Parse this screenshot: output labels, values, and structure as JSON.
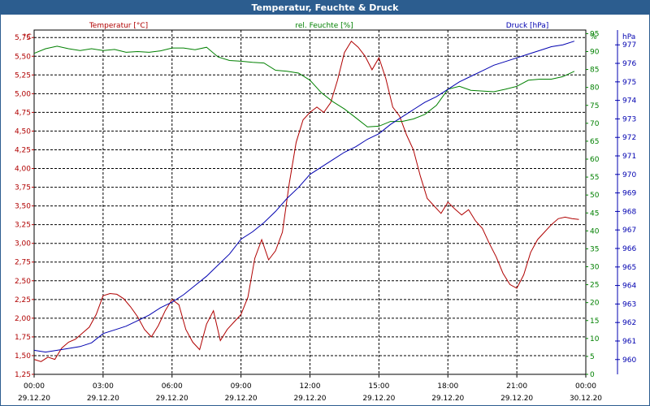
{
  "window": {
    "title": "Temperatur, Feuchte & Druck"
  },
  "colors": {
    "titlebar": "#2c5d8f",
    "temperature": "#b00000",
    "humidity": "#008000",
    "pressure": "#0000b0",
    "grid": "#000000"
  },
  "chart_data": {
    "type": "line",
    "grid": true,
    "x_ticks": [
      {
        "time": "00:00",
        "date": "29.12.20"
      },
      {
        "time": "03:00",
        "date": "29.12.20"
      },
      {
        "time": "06:00",
        "date": "29.12.20"
      },
      {
        "time": "09:00",
        "date": "29.12.20"
      },
      {
        "time": "12:00",
        "date": "29.12.20"
      },
      {
        "time": "15:00",
        "date": "29.12.20"
      },
      {
        "time": "18:00",
        "date": "29.12.20"
      },
      {
        "time": "21:00",
        "date": "29.12.20"
      },
      {
        "time": "00:00",
        "date": "30.12.20"
      }
    ],
    "x_range_hours": [
      0,
      24
    ],
    "axes": {
      "temperature": {
        "label": "Temperatur [°C]",
        "unit": "°C",
        "range": [
          1.25,
          5.85
        ],
        "ticks": [
          "1,25",
          "1,50",
          "1,75",
          "2,00",
          "2,25",
          "2,50",
          "2,75",
          "3,00",
          "3,25",
          "3,50",
          "3,75",
          "4,00",
          "4,25",
          "4,50",
          "4,75",
          "5,00",
          "5,25",
          "5,50",
          "5,75"
        ]
      },
      "humidity": {
        "label": "rel. Feuchte [%]",
        "unit": "%",
        "range": [
          0,
          96
        ],
        "ticks": [
          "0",
          "5",
          "10",
          "15",
          "20",
          "25",
          "30",
          "35",
          "40",
          "45",
          "50",
          "55",
          "60",
          "65",
          "70",
          "75",
          "80",
          "85",
          "90",
          "95"
        ]
      },
      "pressure": {
        "label": "Druck [hPa]",
        "unit": "hPa",
        "range": [
          959.2,
          977.8
        ],
        "ticks": [
          "960",
          "961",
          "962",
          "963",
          "964",
          "965",
          "966",
          "967",
          "968",
          "969",
          "970",
          "971",
          "972",
          "973",
          "974",
          "975",
          "976",
          "977"
        ]
      }
    },
    "series": [
      {
        "name": "Temperatur [°C]",
        "axis": "temperature",
        "color": "#b00000",
        "x": [
          0,
          0.3,
          0.6,
          0.9,
          1.2,
          1.5,
          1.8,
          2.1,
          2.4,
          2.7,
          3.0,
          3.3,
          3.6,
          3.9,
          4.2,
          4.5,
          4.8,
          5.1,
          5.4,
          5.7,
          6.0,
          6.3,
          6.6,
          6.9,
          7.2,
          7.5,
          7.8,
          8.1,
          8.4,
          8.7,
          9.0,
          9.3,
          9.6,
          9.9,
          10.2,
          10.5,
          10.8,
          11.1,
          11.4,
          11.7,
          12.0,
          12.3,
          12.6,
          12.9,
          13.2,
          13.5,
          13.8,
          14.1,
          14.4,
          14.7,
          15.0,
          15.3,
          15.6,
          15.9,
          16.2,
          16.5,
          16.8,
          17.1,
          17.4,
          17.7,
          18.0,
          18.3,
          18.6,
          18.9,
          19.2,
          19.5,
          19.8,
          20.1,
          20.4,
          20.7,
          21.0,
          21.3,
          21.6,
          21.9,
          22.2,
          22.5,
          22.8,
          23.1,
          23.4,
          23.7
        ],
        "values": [
          1.45,
          1.42,
          1.48,
          1.45,
          1.6,
          1.68,
          1.72,
          1.8,
          1.88,
          2.05,
          2.3,
          2.33,
          2.32,
          2.26,
          2.15,
          2.02,
          1.85,
          1.75,
          1.9,
          2.1,
          2.25,
          2.18,
          1.85,
          1.68,
          1.58,
          1.92,
          2.1,
          1.7,
          1.85,
          1.95,
          2.05,
          2.28,
          2.8,
          3.05,
          2.78,
          2.9,
          3.15,
          3.8,
          4.35,
          4.65,
          4.75,
          4.82,
          4.75,
          4.88,
          5.18,
          5.55,
          5.7,
          5.62,
          5.5,
          5.32,
          5.48,
          5.2,
          4.82,
          4.7,
          4.45,
          4.25,
          3.9,
          3.6,
          3.5,
          3.4,
          3.55,
          3.46,
          3.38,
          3.45,
          3.3,
          3.2,
          3.0,
          2.82,
          2.6,
          2.45,
          2.4,
          2.58,
          2.88,
          3.05,
          3.15,
          3.25,
          3.33,
          3.35,
          3.33,
          3.32
        ]
      },
      {
        "name": "rel. Feuchte [%]",
        "axis": "humidity",
        "color": "#008000",
        "x": [
          0,
          0.5,
          1,
          1.5,
          2,
          2.5,
          3,
          3.5,
          4,
          4.5,
          5,
          5.5,
          6,
          6.5,
          7,
          7.5,
          8,
          8.5,
          9,
          9.5,
          10,
          10.5,
          11,
          11.5,
          12,
          12.5,
          13,
          13.5,
          14,
          14.5,
          15,
          15.5,
          16,
          16.5,
          17,
          17.5,
          18,
          18.5,
          19,
          19.5,
          20,
          20.5,
          21,
          21.5,
          22,
          22.5,
          23,
          23.5
        ],
        "values": [
          89.5,
          90.8,
          91.5,
          90.8,
          90.3,
          90.8,
          90.3,
          90.6,
          89.8,
          90.0,
          89.8,
          90.2,
          91.0,
          91.0,
          90.5,
          91.2,
          88.5,
          87.5,
          87.3,
          87.0,
          86.8,
          84.8,
          84.5,
          84.0,
          82.0,
          78.5,
          76.0,
          74.0,
          71.5,
          69.0,
          69.2,
          70.5,
          70.5,
          71.2,
          72.5,
          75.0,
          79.5,
          80.3,
          79.2,
          79.0,
          78.8,
          79.5,
          80.3,
          82.0,
          82.3,
          82.3,
          83.0,
          84.5
        ]
      },
      {
        "name": "Druck [hPa]",
        "axis": "pressure",
        "color": "#0000b0",
        "x": [
          0,
          0.5,
          1,
          1.5,
          2,
          2.5,
          3,
          3.5,
          4,
          4.5,
          5,
          5.5,
          6,
          6.5,
          7,
          7.5,
          8,
          8.5,
          9,
          9.5,
          10,
          10.5,
          11,
          11.5,
          12,
          12.5,
          13,
          13.5,
          14,
          14.5,
          15,
          15.5,
          16,
          16.5,
          17,
          17.5,
          18,
          18.5,
          19,
          19.5,
          20,
          20.5,
          21,
          21.5,
          22,
          22.5,
          23,
          23.5
        ],
        "values": [
          960.5,
          960.4,
          960.5,
          960.6,
          960.7,
          960.9,
          961.4,
          961.6,
          961.8,
          962.1,
          962.4,
          962.8,
          963.1,
          963.5,
          964.0,
          964.5,
          965.1,
          965.7,
          966.5,
          966.9,
          967.4,
          968.0,
          968.7,
          969.3,
          970.0,
          970.4,
          970.8,
          971.2,
          971.5,
          971.9,
          972.2,
          972.7,
          973.1,
          973.5,
          973.9,
          974.2,
          974.6,
          975.0,
          975.3,
          975.6,
          975.9,
          976.1,
          976.3,
          976.5,
          976.7,
          976.9,
          977.0,
          977.2
        ]
      }
    ]
  }
}
